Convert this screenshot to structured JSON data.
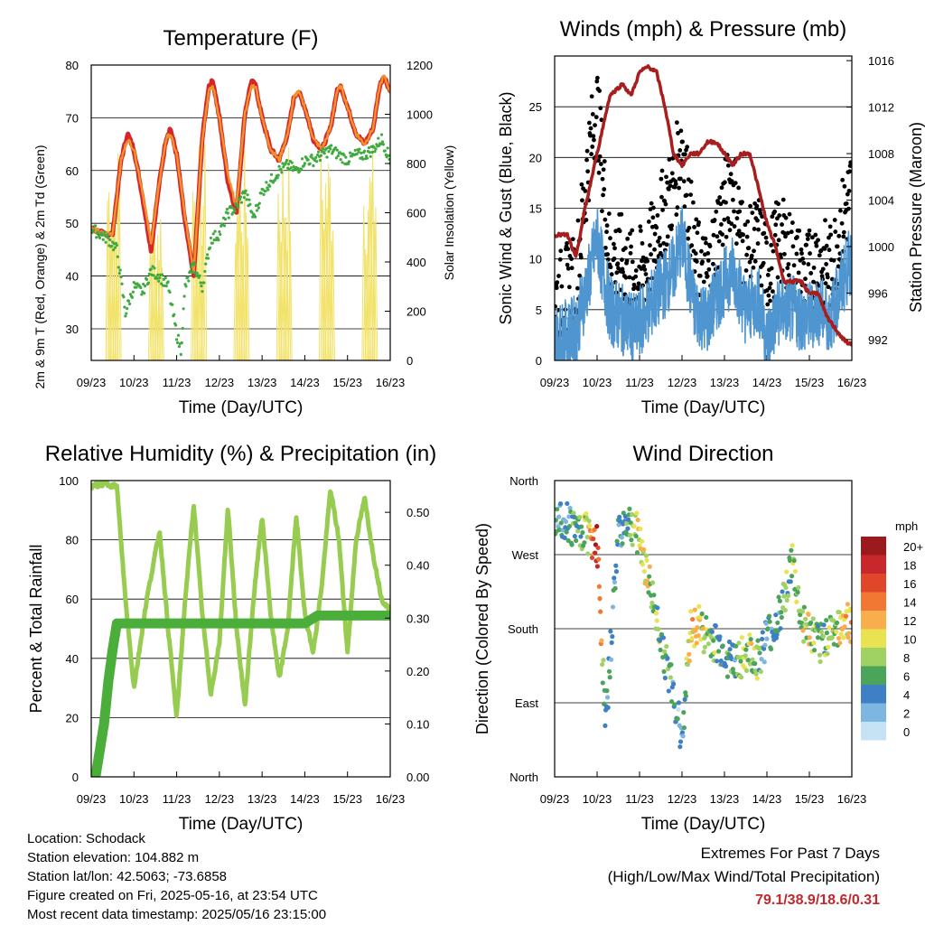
{
  "x_ticks": [
    "09/23",
    "10/23",
    "11/23",
    "12/23",
    "13/23",
    "14/23",
    "15/23",
    "16/23"
  ],
  "footer": {
    "location": "Location: Schodack",
    "elevation": "Station elevation: 104.882 m",
    "latlon": "Station lat/lon: 42.5063; -73.6858",
    "created": "Figure created on Fri, 2025-05-16, at 23:54 UTC",
    "recent": "Most recent data timestamp: 2025/05/16 23:15:00"
  },
  "extremes": {
    "line1": "Extremes For Past 7 Days",
    "line2": "(High/Low/Max Wind/Total Precipitation)",
    "values": "79.1/38.9/18.6/0.31"
  },
  "chart_data": [
    {
      "type": "line",
      "title": "Temperature (F)",
      "xlabel": "Time (Day/UTC)",
      "ylabel": "2m & 9m T (Red, Orange) & 2m Td (Green)",
      "ylabel_right": "Solar Insolation (Yellow)",
      "ylim": [
        24,
        80
      ],
      "yticks": [
        30,
        40,
        50,
        60,
        70,
        80
      ],
      "ylim_right": [
        0,
        1200
      ],
      "yticks_right": [
        0,
        200,
        400,
        600,
        800,
        1000,
        1200
      ],
      "grid": true,
      "series": [
        {
          "color": "#d7262b",
          "x": [
            0,
            0.3,
            0.5,
            0.7,
            0.85,
            1.0,
            1.2,
            1.4,
            1.6,
            1.75,
            1.85,
            2.0,
            2.2,
            2.4,
            2.6,
            2.75,
            2.85,
            3.0,
            3.2,
            3.4,
            3.6,
            3.75,
            3.85,
            4.0,
            4.2,
            4.4,
            4.6,
            4.75,
            4.85,
            5.0,
            5.2,
            5.4,
            5.6,
            5.75,
            5.85,
            6.0,
            6.2,
            6.4,
            6.6,
            6.75,
            6.85,
            7.0
          ],
          "y": [
            49,
            48,
            48,
            62,
            67,
            64,
            55,
            45,
            58,
            66,
            68,
            63,
            50,
            40,
            66,
            76,
            77,
            70,
            58,
            52,
            71,
            77,
            76,
            70,
            64,
            62,
            67,
            74,
            75,
            72,
            66,
            64,
            68,
            75,
            76,
            72,
            67,
            65,
            68,
            76,
            78,
            75
          ]
        },
        {
          "color": "#f0922a",
          "x": [
            0,
            0.3,
            0.5,
            0.7,
            0.85,
            1.0,
            1.2,
            1.4,
            1.6,
            1.75,
            1.85,
            2.0,
            2.2,
            2.4,
            2.6,
            2.75,
            2.85,
            3.0,
            3.2,
            3.4,
            3.6,
            3.75,
            3.85,
            4.0,
            4.2,
            4.4,
            4.6,
            4.75,
            4.85,
            5.0,
            5.2,
            5.4,
            5.6,
            5.75,
            5.85,
            6.0,
            6.2,
            6.4,
            6.6,
            6.75,
            6.85,
            7.0
          ],
          "y": [
            49,
            48,
            48,
            62,
            66,
            64,
            56,
            46,
            58,
            66,
            67,
            63,
            51,
            41,
            66,
            75,
            76,
            70,
            59,
            53,
            71,
            76,
            76,
            70,
            64,
            62,
            67,
            74,
            75,
            72,
            66,
            64,
            68,
            75,
            76,
            72,
            67,
            65,
            68,
            76,
            78,
            75
          ]
        },
        {
          "color": "#3faa3f",
          "x": [
            0,
            0.2,
            0.4,
            0.6,
            0.8,
            1.0,
            1.2,
            1.4,
            1.6,
            1.8,
            2.0,
            2.1,
            2.2,
            2.4,
            2.6,
            2.8,
            3.0,
            3.2,
            3.4,
            3.6,
            3.8,
            4.0,
            4.2,
            4.4,
            4.6,
            4.8,
            5.0,
            5.2,
            5.4,
            5.6,
            5.8,
            6.0,
            6.2,
            6.4,
            6.6,
            6.8,
            7.0
          ],
          "y": [
            49,
            48,
            47,
            45,
            33,
            38,
            37,
            41,
            40,
            38,
            29,
            26,
            38,
            42,
            38,
            47,
            48,
            52,
            53,
            56,
            51,
            56,
            58,
            60,
            61,
            60,
            62,
            62,
            63,
            64,
            63,
            62,
            63,
            63,
            64,
            66,
            62
          ]
        }
      ],
      "solar_series": {
        "color": "#f2e26a",
        "days": [
          0,
          1,
          2,
          3,
          4,
          5,
          6
        ],
        "peaks": [
          900,
          700,
          900,
          860,
          900,
          920,
          900
        ]
      }
    },
    {
      "type": "scatter",
      "title": "Winds (mph) & Pressure (mb)",
      "xlabel": "Time (Day/UTC)",
      "ylabel": "Sonic Wind & Gust (Blue, Black)",
      "ylabel_right": "Station Pressure (Maroon)",
      "ylim": [
        0,
        30
      ],
      "yticks": [
        0,
        5,
        10,
        15,
        20,
        25
      ],
      "ylim_right": [
        990.2,
        1016.4
      ],
      "yticks_right": [
        992,
        996,
        1000,
        1004,
        1008,
        1012,
        1016
      ],
      "grid": true,
      "series": [
        {
          "name": "",
          "color": "#000000",
          "x": [
            0,
            0.5,
            0.8,
            1.0,
            1.3,
            1.6,
            1.9,
            2.2,
            2.5,
            2.8,
            3.0,
            3.3,
            3.6,
            3.9,
            4.2,
            4.5,
            4.8,
            5.0,
            5.3,
            5.6,
            5.9,
            6.2,
            6.5,
            6.8,
            7.0
          ],
          "y": [
            6,
            8,
            20,
            25,
            10,
            10,
            8,
            10,
            14,
            17,
            22,
            10,
            8,
            14,
            18,
            10,
            12,
            9,
            12,
            10,
            8,
            10,
            9,
            14,
            17
          ]
        },
        {
          "name": "",
          "color": "#4f95d0",
          "x": [
            0,
            0.5,
            0.8,
            1.0,
            1.3,
            1.6,
            1.9,
            2.2,
            2.5,
            2.8,
            3.0,
            3.3,
            3.6,
            3.9,
            4.2,
            4.5,
            4.8,
            5.0,
            5.3,
            5.6,
            5.9,
            6.2,
            6.5,
            6.8,
            7.0
          ],
          "y": [
            2,
            3,
            8,
            12,
            5,
            4,
            3,
            5,
            7,
            9,
            12,
            5,
            4,
            7,
            9,
            5,
            6,
            2,
            5,
            5,
            4,
            5,
            4,
            8,
            10
          ]
        },
        {
          "name": "",
          "color": "#a81e1e",
          "x": [
            0,
            0.3,
            0.5,
            0.7,
            1.0,
            1.3,
            1.6,
            1.8,
            2.0,
            2.2,
            2.4,
            2.6,
            2.8,
            3.0,
            3.2,
            3.4,
            3.6,
            3.8,
            4.0,
            4.2,
            4.4,
            4.6,
            4.8,
            5.0,
            5.2,
            5.4,
            5.6,
            5.8,
            6.0,
            6.2,
            6.4,
            6.6,
            6.8,
            7.0
          ],
          "y": [
            1001,
            1001,
            999,
            1003,
            1008,
            1013,
            1014,
            1013,
            1015,
            1015.5,
            1015,
            1012,
            1008,
            1007,
            1008,
            1008,
            1009,
            1009,
            1008,
            1007,
            1008,
            1008,
            1005,
            1002,
            1000,
            997,
            997,
            997,
            996,
            996,
            994,
            993,
            992,
            991.5
          ]
        }
      ]
    },
    {
      "type": "line",
      "title": "Relative Humidity (%) & Precipitation (in)",
      "xlabel": "Time (Day/UTC)",
      "ylabel": "Percent & Total Rainfall",
      "ylim": [
        0,
        100
      ],
      "yticks": [
        0,
        20,
        40,
        60,
        80,
        100
      ],
      "ylim_right": [
        0,
        0.56
      ],
      "yticks_right": [
        "0.00",
        "0.10",
        "0.20",
        "0.30",
        "0.40",
        "0.50"
      ],
      "grid": true,
      "series": [
        {
          "color": "#97cc50",
          "x": [
            0,
            0.3,
            0.6,
            0.8,
            1.0,
            1.3,
            1.6,
            1.8,
            2.0,
            2.2,
            2.4,
            2.6,
            2.8,
            3.0,
            3.2,
            3.4,
            3.6,
            3.8,
            4.0,
            4.2,
            4.4,
            4.6,
            4.8,
            5.0,
            5.2,
            5.4,
            5.6,
            5.8,
            6.0,
            6.2,
            6.4,
            6.6,
            6.8,
            7.0
          ],
          "y": [
            98,
            99,
            98,
            60,
            30,
            60,
            83,
            50,
            20,
            60,
            92,
            55,
            28,
            45,
            91,
            50,
            24,
            60,
            88,
            55,
            33,
            50,
            88,
            55,
            42,
            65,
            97,
            80,
            42,
            80,
            94,
            75,
            60,
            56
          ]
        },
        {
          "color": "#4cae3a",
          "x": [
            0,
            0.1,
            0.2,
            0.3,
            0.4,
            0.5,
            0.6,
            0.8,
            1.0,
            2.0,
            3.0,
            4.0,
            5.0,
            5.3,
            6.0,
            7.0
          ],
          "y": [
            0,
            0,
            0.05,
            0.1,
            0.18,
            0.24,
            0.29,
            0.29,
            0.29,
            0.29,
            0.29,
            0.29,
            0.29,
            0.305,
            0.305,
            0.305
          ]
        }
      ]
    },
    {
      "type": "scatter",
      "title": "Wind Direction",
      "xlabel": "Time (Day/UTC)",
      "ylabel": "Direction (Colored By Speed)",
      "ylim": [
        0,
        360
      ],
      "yticks": [
        "North",
        "East",
        "South",
        "West",
        "North"
      ],
      "grid": true,
      "colorbar": {
        "title": "mph",
        "labels": [
          "20+",
          "18",
          "16",
          "14",
          "12",
          "10",
          "8",
          "6",
          "4",
          "2",
          "0"
        ],
        "colors": [
          "#9b1a1b",
          "#c8272b",
          "#e0462a",
          "#f07832",
          "#f9ae4d",
          "#e9e354",
          "#9fd163",
          "#4aa55a",
          "#3f7fc3",
          "#7db6e0",
          "#c5e3f5"
        ]
      },
      "series": [
        {
          "x": [
            0.1,
            0.3,
            0.5,
            0.7,
            0.9,
            1.0,
            1.2,
            1.5,
            1.7,
            1.9,
            2.0,
            3.0,
            3.2,
            3.4,
            3.6,
            3.8,
            4.0,
            4.2,
            4.4,
            4.6,
            4.8,
            5.0,
            5.2,
            5.4,
            5.6,
            5.8,
            6.0,
            6.2,
            6.4,
            6.6,
            6.8,
            7.0
          ],
          "y": [
            320,
            310,
            300,
            300,
            290,
            285,
            60,
            300,
            310,
            300,
            290,
            50,
            180,
            185,
            170,
            160,
            150,
            140,
            145,
            150,
            140,
            170,
            180,
            220,
            260,
            190,
            175,
            160,
            170,
            180,
            190,
            185
          ],
          "speed": [
            3,
            4,
            5,
            8,
            14,
            18,
            4,
            4,
            6,
            8,
            10,
            3,
            12,
            10,
            8,
            6,
            5,
            4,
            8,
            9,
            7,
            4,
            5,
            6,
            8,
            8,
            10,
            6,
            8,
            8,
            12,
            11
          ]
        }
      ]
    }
  ]
}
